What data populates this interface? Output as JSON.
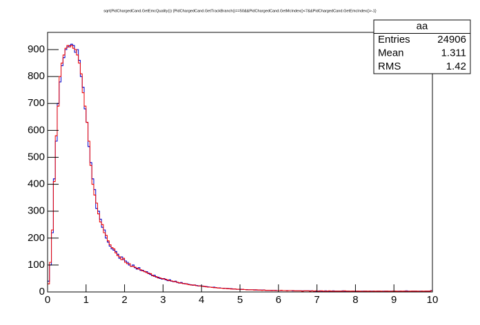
{
  "chart_data": {
    "type": "histogram",
    "title": "sqrt(PidChargedCand.GetEmcQuality()) {PidChargedCand.GetTrackBranch()==50&&PidChargedCand.GetMcIndex()<7&&PidChargedCand.GetEmcIndex()>-1}",
    "bins": [
      0,
      0.05,
      0.1,
      0.15,
      0.2,
      0.25,
      0.3,
      0.35,
      0.4,
      0.45,
      0.5,
      0.55,
      0.6,
      0.65,
      0.7,
      0.75,
      0.8,
      0.85,
      0.9,
      0.95,
      1,
      1.05,
      1.1,
      1.15,
      1.2,
      1.25,
      1.3,
      1.35,
      1.4,
      1.45,
      1.5,
      1.55,
      1.6,
      1.65,
      1.7,
      1.75,
      1.8,
      1.85,
      1.9,
      1.95,
      2,
      2.05,
      2.1,
      2.15,
      2.2,
      2.25,
      2.3,
      2.35,
      2.4,
      2.45,
      2.5,
      2.55,
      2.6,
      2.65,
      2.7,
      2.75,
      2.8,
      2.85,
      2.9,
      2.95,
      3,
      3.05,
      3.1,
      3.15,
      3.2,
      3.25,
      3.3,
      3.35,
      3.4,
      3.45,
      3.5,
      3.55,
      3.6,
      3.65,
      3.7,
      3.75,
      3.8,
      3.85,
      3.9,
      3.95,
      4,
      4.05,
      4.1,
      4.15,
      4.2,
      4.25,
      4.3,
      4.35,
      4.4,
      4.45,
      4.5,
      4.55,
      4.6,
      4.65,
      4.7,
      4.75,
      4.8,
      4.85,
      4.9,
      4.95,
      5,
      5.05,
      5.1,
      5.15,
      5.2,
      5.25,
      5.3,
      5.35,
      5.4,
      5.45,
      5.5,
      5.55,
      5.6,
      5.65,
      5.7,
      5.75,
      5.8,
      5.85,
      5.9,
      5.95,
      6,
      6.05,
      6.1,
      6.15,
      6.2,
      6.25,
      6.3,
      6.35,
      6.4,
      6.45,
      6.5,
      6.55,
      6.6,
      6.65,
      6.7,
      6.75,
      6.8,
      6.85,
      6.9,
      6.95,
      7,
      7.05,
      7.1,
      7.15,
      7.2,
      7.25,
      7.3,
      7.35,
      7.4,
      7.45,
      7.5,
      7.55,
      7.6,
      7.65,
      7.7,
      7.75,
      7.8,
      7.85,
      7.9,
      7.95,
      8,
      8.05,
      8.1,
      8.15,
      8.2,
      8.25,
      8.3,
      8.35,
      8.4,
      8.45,
      8.5,
      8.55,
      8.6,
      8.65,
      8.7,
      8.75,
      8.8,
      8.85,
      8.9,
      8.95,
      9,
      9.05,
      9.1,
      9.15,
      9.2,
      9.25,
      9.3,
      9.35,
      9.4,
      9.45,
      9.5,
      9.55,
      9.6,
      9.65,
      9.7,
      9.75,
      9.8,
      9.85,
      9.9,
      9.95,
      10
    ],
    "series": [
      {
        "color": "#0000cc",
        "values": [
          40,
          100,
          220,
          420,
          560,
          700,
          780,
          840,
          870,
          900,
          910,
          915,
          920,
          915,
          890,
          900,
          860,
          800,
          760,
          680,
          630,
          540,
          480,
          420,
          380,
          310,
          300,
          270,
          240,
          230,
          200,
          185,
          170,
          160,
          155,
          150,
          140,
          125,
          130,
          120,
          115,
          110,
          100,
          95,
          100,
          90,
          85,
          90,
          80,
          80,
          75,
          75,
          70,
          65,
          60,
          62,
          55,
          55,
          50,
          48,
          50,
          45,
          42,
          45,
          40,
          38,
          40,
          35,
          33,
          35,
          32,
          30,
          30,
          28,
          27,
          25,
          26,
          24,
          22,
          23,
          22,
          20,
          20,
          19,
          18,
          17,
          18,
          16,
          15,
          15,
          14,
          14,
          13,
          13,
          12,
          12,
          11,
          11,
          10,
          10,
          10,
          9,
          9,
          9,
          8,
          8,
          8,
          8,
          7,
          7,
          7,
          7,
          7,
          6,
          6,
          6,
          6,
          6,
          6,
          5,
          5,
          5,
          5,
          5,
          5,
          5,
          5,
          4,
          4,
          4,
          4,
          4,
          4,
          4,
          4,
          4,
          4,
          4,
          3,
          3,
          3,
          4,
          3,
          3,
          4,
          3,
          3,
          3,
          4,
          3,
          3,
          3,
          3,
          4,
          3,
          3,
          3,
          2,
          3,
          3,
          3,
          3,
          2,
          3,
          3,
          3,
          2,
          3,
          3,
          3,
          2,
          3,
          3,
          2,
          3,
          3,
          3,
          2,
          3,
          3,
          3,
          2,
          3,
          3,
          2,
          3,
          4,
          3,
          2,
          3,
          3,
          3,
          2,
          3,
          3,
          2,
          3,
          3,
          3,
          5
        ]
      },
      {
        "color": "#ee0000",
        "values": [
          30,
          110,
          230,
          410,
          580,
          690,
          800,
          850,
          880,
          905,
          915,
          910,
          915,
          905,
          900,
          880,
          850,
          810,
          740,
          690,
          630,
          560,
          470,
          400,
          360,
          330,
          290,
          260,
          250,
          220,
          210,
          190,
          175,
          165,
          160,
          145,
          135,
          130,
          120,
          125,
          110,
          105,
          105,
          95,
          95,
          92,
          88,
          85,
          82,
          78,
          76,
          72,
          68,
          68,
          62,
          58,
          57,
          52,
          52,
          50,
          48,
          47,
          44,
          42,
          41,
          39,
          38,
          36,
          34,
          33,
          31,
          31,
          29,
          27,
          26,
          26,
          25,
          23,
          23,
          22,
          21,
          21,
          19,
          18,
          18,
          17,
          16,
          16,
          15,
          14,
          14,
          13,
          13,
          12,
          12,
          11,
          11,
          11,
          10,
          10,
          9,
          10,
          9,
          8,
          8,
          8,
          8,
          7,
          8,
          7,
          7,
          6,
          7,
          6,
          6,
          6,
          5,
          6,
          5,
          5,
          5,
          6,
          5,
          5,
          4,
          5,
          5,
          5,
          4,
          4,
          4,
          4,
          3,
          4,
          4,
          4,
          3,
          4,
          3,
          4,
          3,
          3,
          4,
          3,
          3,
          3,
          4,
          3,
          3,
          3,
          3,
          3,
          3,
          3,
          4,
          3,
          3,
          3,
          3,
          3,
          3,
          3,
          3,
          2,
          3,
          3,
          3,
          3,
          2,
          3,
          3,
          3,
          3,
          3,
          2,
          3,
          3,
          3,
          2,
          3,
          3,
          3,
          2,
          3,
          3,
          3,
          3,
          2,
          3,
          3,
          3,
          3,
          3,
          2,
          3,
          3,
          3,
          3,
          3,
          4
        ]
      }
    ],
    "xlim": [
      0,
      10
    ],
    "xticks": [
      0,
      1,
      2,
      3,
      4,
      5,
      6,
      7,
      8,
      9,
      10
    ],
    "ylim": [
      0,
      964
    ],
    "yticks": [
      0,
      100,
      200,
      300,
      400,
      500,
      600,
      700,
      800,
      900
    ],
    "stats": {
      "title": "aa",
      "rows": [
        {
          "label": "Entries",
          "value": 24906
        },
        {
          "label": "Mean",
          "value": 1.311
        },
        {
          "label": "RMS",
          "value": 1.42
        }
      ]
    }
  }
}
